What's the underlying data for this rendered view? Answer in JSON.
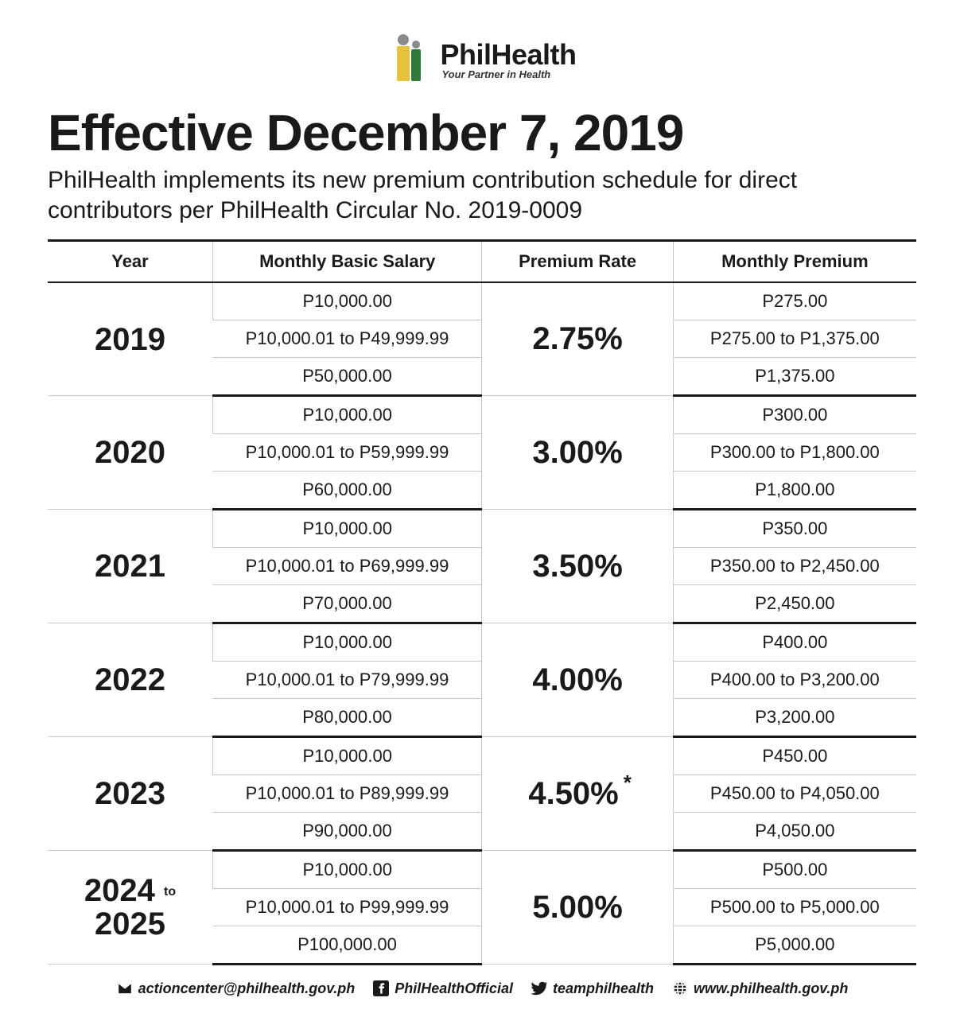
{
  "logo": {
    "brand": "PhilHealth",
    "tagline": "Your Partner in Health",
    "colors": {
      "yellow": "#e4c33a",
      "green": "#2e7a3a",
      "grey": "#8a8a8a"
    }
  },
  "headline": "Effective December 7, 2019",
  "subhead": "PhilHealth implements its new premium contribution schedule for direct contributors per PhilHealth Circular No. 2019-0009",
  "table": {
    "columns": [
      "Year",
      "Monthly Basic Salary",
      "Premium Rate",
      "Monthly Premium"
    ],
    "blocks": [
      {
        "year": "2019",
        "year_suffix": "",
        "rate": "2.75%",
        "asterisk": false,
        "rows": [
          {
            "salary": "P10,000.00",
            "premium": "P275.00"
          },
          {
            "salary": "P10,000.01 to P49,999.99",
            "premium": "P275.00 to P1,375.00"
          },
          {
            "salary": "P50,000.00",
            "premium": "P1,375.00"
          }
        ]
      },
      {
        "year": "2020",
        "year_suffix": "",
        "rate": "3.00%",
        "asterisk": false,
        "rows": [
          {
            "salary": "P10,000.00",
            "premium": "P300.00"
          },
          {
            "salary": "P10,000.01 to P59,999.99",
            "premium": "P300.00 to P1,800.00"
          },
          {
            "salary": "P60,000.00",
            "premium": "P1,800.00"
          }
        ]
      },
      {
        "year": "2021",
        "year_suffix": "",
        "rate": "3.50%",
        "asterisk": false,
        "rows": [
          {
            "salary": "P10,000.00",
            "premium": "P350.00"
          },
          {
            "salary": "P10,000.01 to P69,999.99",
            "premium": "P350.00 to P2,450.00"
          },
          {
            "salary": "P70,000.00",
            "premium": "P2,450.00"
          }
        ]
      },
      {
        "year": "2022",
        "year_suffix": "",
        "rate": "4.00%",
        "asterisk": false,
        "rows": [
          {
            "salary": "P10,000.00",
            "premium": "P400.00"
          },
          {
            "salary": "P10,000.01 to P79,999.99",
            "premium": "P400.00 to P3,200.00"
          },
          {
            "salary": "P80,000.00",
            "premium": "P3,200.00"
          }
        ]
      },
      {
        "year": "2023",
        "year_suffix": "",
        "rate": "4.50%",
        "asterisk": true,
        "rows": [
          {
            "salary": "P10,000.00",
            "premium": "P450.00"
          },
          {
            "salary": "P10,000.01 to P89,999.99",
            "premium": "P450.00 to P4,050.00"
          },
          {
            "salary": "P90,000.00",
            "premium": "P4,050.00"
          }
        ]
      },
      {
        "year": "2024",
        "year_suffix": "to",
        "year2": "2025",
        "rate": "5.00%",
        "asterisk": false,
        "rows": [
          {
            "salary": "P10,000.00",
            "premium": "P500.00"
          },
          {
            "salary": "P10,000.01 to P99,999.99",
            "premium": "P500.00 to P5,000.00"
          },
          {
            "salary": "P100,000.00",
            "premium": "P5,000.00"
          }
        ]
      }
    ]
  },
  "footer": {
    "email": "actioncenter@philhealth.gov.ph",
    "facebook": "PhilHealthOfficial",
    "twitter": "teamphilhealth",
    "website": "www.philhealth.gov.ph"
  }
}
